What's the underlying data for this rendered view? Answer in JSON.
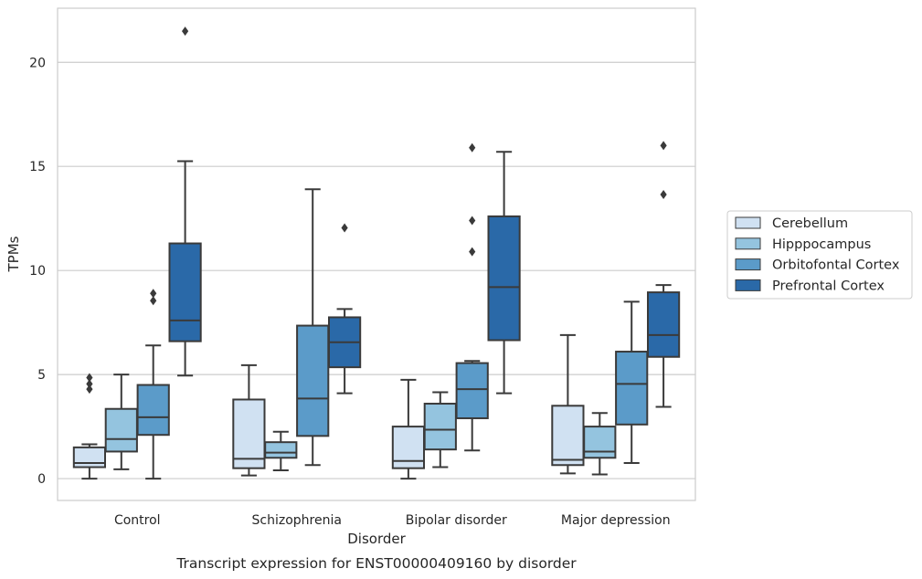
{
  "chart_data": {
    "type": "box",
    "title": "",
    "caption": "Transcript expression for ENST00000409160 by disorder",
    "xlabel": "Disorder",
    "ylabel": "TPMs",
    "ylim": [
      -1.05,
      22.6
    ],
    "yticks": [
      0,
      5,
      10,
      15,
      20
    ],
    "grid": "horizontal",
    "legend_placement": "right-center",
    "categories": [
      "Control",
      "Schizophrenia",
      "Bipolar disorder",
      "Major depression"
    ],
    "series": [
      {
        "name": "Cerebellum",
        "color": "#d0e1f2",
        "boxes": [
          {
            "whislo": 0.0,
            "q1": 0.55,
            "median": 0.75,
            "q3": 1.5,
            "whishi": 1.65,
            "fliers": [
              4.3,
              4.55,
              4.85
            ]
          },
          {
            "whislo": 0.15,
            "q1": 0.5,
            "median": 0.95,
            "q3": 3.8,
            "whishi": 5.45,
            "fliers": []
          },
          {
            "whislo": 0.0,
            "q1": 0.5,
            "median": 0.85,
            "q3": 2.5,
            "whishi": 4.75,
            "fliers": []
          },
          {
            "whislo": 0.25,
            "q1": 0.65,
            "median": 0.9,
            "q3": 3.5,
            "whishi": 6.9,
            "fliers": []
          }
        ]
      },
      {
        "name": "Hipppocampus",
        "color": "#94c4df",
        "boxes": [
          {
            "whislo": 0.45,
            "q1": 1.3,
            "median": 1.9,
            "q3": 3.35,
            "whishi": 5.0,
            "fliers": []
          },
          {
            "whislo": 0.4,
            "q1": 1.0,
            "median": 1.25,
            "q3": 1.75,
            "whishi": 2.25,
            "fliers": []
          },
          {
            "whislo": 0.55,
            "q1": 1.4,
            "median": 2.35,
            "q3": 3.6,
            "whishi": 4.15,
            "fliers": []
          },
          {
            "whislo": 0.2,
            "q1": 1.0,
            "median": 1.3,
            "q3": 2.5,
            "whishi": 3.15,
            "fliers": []
          }
        ]
      },
      {
        "name": "Orbitofontal Cortex",
        "color": "#5b9bc9",
        "boxes": [
          {
            "whislo": 0.0,
            "q1": 2.1,
            "median": 2.95,
            "q3": 4.5,
            "whishi": 6.4,
            "fliers": [
              8.55,
              8.9
            ]
          },
          {
            "whislo": 0.65,
            "q1": 2.05,
            "median": 3.85,
            "q3": 7.35,
            "whishi": 13.9,
            "fliers": []
          },
          {
            "whislo": 1.35,
            "q1": 2.9,
            "median": 4.3,
            "q3": 5.55,
            "whishi": 5.65,
            "fliers": [
              10.9,
              12.4,
              15.9
            ]
          },
          {
            "whislo": 0.75,
            "q1": 2.6,
            "median": 4.55,
            "q3": 6.1,
            "whishi": 8.5,
            "fliers": []
          }
        ]
      },
      {
        "name": "Prefrontal Cortex",
        "color": "#2a69a8",
        "boxes": [
          {
            "whislo": 4.95,
            "q1": 6.6,
            "median": 7.6,
            "q3": 11.3,
            "whishi": 15.25,
            "fliers": [
              21.5
            ]
          },
          {
            "whislo": 4.1,
            "q1": 5.35,
            "median": 6.55,
            "q3": 7.75,
            "whishi": 8.15,
            "fliers": [
              12.05
            ]
          },
          {
            "whislo": 4.1,
            "q1": 6.65,
            "median": 9.2,
            "q3": 12.6,
            "whishi": 15.7,
            "fliers": []
          },
          {
            "whislo": 3.45,
            "q1": 5.85,
            "median": 6.9,
            "q3": 8.95,
            "whishi": 9.3,
            "fliers": [
              13.65,
              16.0
            ]
          }
        ]
      }
    ]
  }
}
